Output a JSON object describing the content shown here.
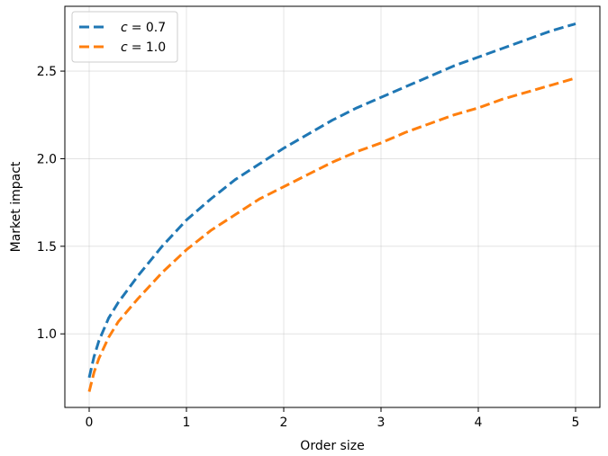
{
  "chart_data": {
    "type": "line",
    "xlabel": "Order size",
    "ylabel": "Market impact",
    "xlim": [
      -0.25,
      5.25
    ],
    "ylim": [
      0.58,
      2.87
    ],
    "x_ticks": [
      0,
      1,
      2,
      3,
      4,
      5
    ],
    "x_tick_labels": [
      "0",
      "1",
      "2",
      "3",
      "4",
      "5"
    ],
    "y_ticks": [
      1.0,
      1.5,
      2.0,
      2.5
    ],
    "y_tick_labels": [
      "1.0",
      "1.5",
      "2.0",
      "2.5"
    ],
    "grid": true,
    "legend_position": "top-left",
    "series": [
      {
        "name_symbol": "c",
        "name_value": "= 0.7",
        "color": "#1f77b4",
        "style": "dashed",
        "x": [
          0,
          0.05,
          0.1,
          0.2,
          0.3,
          0.5,
          0.75,
          1.0,
          1.25,
          1.5,
          1.75,
          2.0,
          2.25,
          2.5,
          2.75,
          3.0,
          3.25,
          3.5,
          3.75,
          4.0,
          4.25,
          4.5,
          4.75,
          5.0
        ],
        "y": [
          0.75,
          0.87,
          0.96,
          1.09,
          1.18,
          1.33,
          1.5,
          1.65,
          1.77,
          1.88,
          1.97,
          2.06,
          2.14,
          2.22,
          2.29,
          2.35,
          2.41,
          2.47,
          2.53,
          2.58,
          2.63,
          2.68,
          2.73,
          2.77
        ]
      },
      {
        "name_symbol": "c",
        "name_value": "= 1.0",
        "color": "#ff7f0e",
        "style": "dashed",
        "x": [
          0,
          0.05,
          0.1,
          0.2,
          0.3,
          0.5,
          0.75,
          1.0,
          1.25,
          1.5,
          1.75,
          2.0,
          2.25,
          2.5,
          2.75,
          3.0,
          3.25,
          3.5,
          3.75,
          4.0,
          4.25,
          4.5,
          4.75,
          5.0
        ],
        "y": [
          0.67,
          0.78,
          0.86,
          0.98,
          1.07,
          1.2,
          1.35,
          1.48,
          1.59,
          1.68,
          1.77,
          1.84,
          1.91,
          1.98,
          2.04,
          2.09,
          2.15,
          2.2,
          2.25,
          2.29,
          2.34,
          2.38,
          2.42,
          2.46
        ]
      }
    ]
  }
}
